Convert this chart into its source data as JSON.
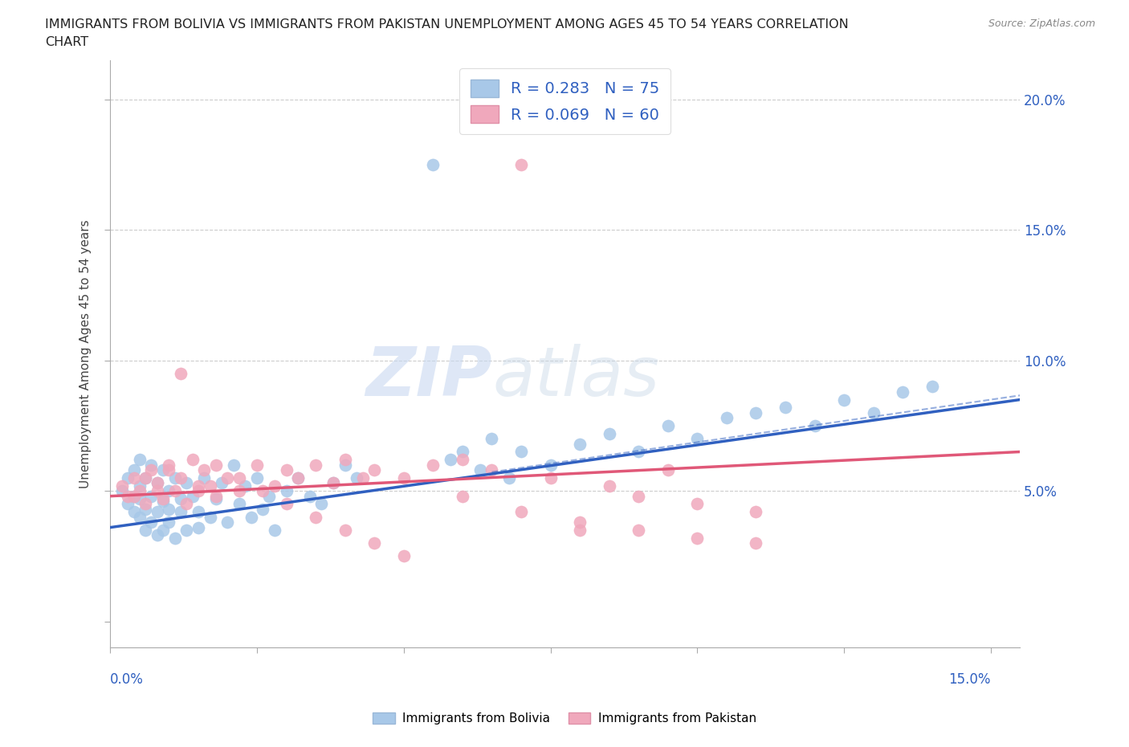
{
  "title_line1": "IMMIGRANTS FROM BOLIVIA VS IMMIGRANTS FROM PAKISTAN UNEMPLOYMENT AMONG AGES 45 TO 54 YEARS CORRELATION",
  "title_line2": "CHART",
  "source_text": "Source: ZipAtlas.com",
  "ylabel_label": "Unemployment Among Ages 45 to 54 years",
  "xlim": [
    0.0,
    0.155
  ],
  "ylim": [
    -0.01,
    0.215
  ],
  "legend_r1": "R = 0.283   N = 75",
  "legend_r2": "R = 0.069   N = 60",
  "color_bolivia": "#a8c8e8",
  "color_pakistan": "#f0a8bc",
  "color_bolivia_line": "#3060c0",
  "color_pakistan_line": "#e05878",
  "watermark_zip": "ZIP",
  "watermark_atlas": "atlas",
  "bolivia_x": [
    0.002,
    0.003,
    0.003,
    0.004,
    0.004,
    0.004,
    0.005,
    0.005,
    0.005,
    0.005,
    0.006,
    0.006,
    0.006,
    0.007,
    0.007,
    0.007,
    0.008,
    0.008,
    0.008,
    0.009,
    0.009,
    0.009,
    0.01,
    0.01,
    0.01,
    0.011,
    0.011,
    0.012,
    0.012,
    0.013,
    0.013,
    0.014,
    0.015,
    0.015,
    0.016,
    0.017,
    0.018,
    0.019,
    0.02,
    0.021,
    0.022,
    0.023,
    0.024,
    0.025,
    0.026,
    0.027,
    0.028,
    0.03,
    0.032,
    0.034,
    0.036,
    0.038,
    0.04,
    0.042,
    0.055,
    0.058,
    0.06,
    0.063,
    0.065,
    0.068,
    0.07,
    0.075,
    0.08,
    0.085,
    0.09,
    0.095,
    0.1,
    0.105,
    0.11,
    0.115,
    0.12,
    0.125,
    0.13,
    0.135,
    0.14
  ],
  "bolivia_y": [
    0.05,
    0.045,
    0.055,
    0.048,
    0.042,
    0.058,
    0.052,
    0.047,
    0.04,
    0.062,
    0.055,
    0.043,
    0.035,
    0.048,
    0.038,
    0.06,
    0.042,
    0.053,
    0.033,
    0.046,
    0.058,
    0.035,
    0.05,
    0.043,
    0.038,
    0.055,
    0.032,
    0.047,
    0.042,
    0.053,
    0.035,
    0.048,
    0.042,
    0.036,
    0.055,
    0.04,
    0.047,
    0.053,
    0.038,
    0.06,
    0.045,
    0.052,
    0.04,
    0.055,
    0.043,
    0.048,
    0.035,
    0.05,
    0.055,
    0.048,
    0.045,
    0.053,
    0.06,
    0.055,
    0.175,
    0.062,
    0.065,
    0.058,
    0.07,
    0.055,
    0.065,
    0.06,
    0.068,
    0.072,
    0.065,
    0.075,
    0.07,
    0.078,
    0.08,
    0.082,
    0.075,
    0.085,
    0.08,
    0.088,
    0.09
  ],
  "pakistan_x": [
    0.002,
    0.003,
    0.004,
    0.005,
    0.006,
    0.007,
    0.008,
    0.009,
    0.01,
    0.011,
    0.012,
    0.013,
    0.014,
    0.015,
    0.016,
    0.017,
    0.018,
    0.02,
    0.022,
    0.025,
    0.028,
    0.03,
    0.032,
    0.035,
    0.038,
    0.04,
    0.043,
    0.045,
    0.05,
    0.055,
    0.06,
    0.065,
    0.07,
    0.075,
    0.08,
    0.085,
    0.09,
    0.095,
    0.1,
    0.11,
    0.004,
    0.006,
    0.008,
    0.01,
    0.012,
    0.015,
    0.018,
    0.022,
    0.026,
    0.03,
    0.035,
    0.04,
    0.045,
    0.05,
    0.06,
    0.07,
    0.08,
    0.09,
    0.1,
    0.11
  ],
  "pakistan_y": [
    0.052,
    0.048,
    0.055,
    0.05,
    0.045,
    0.058,
    0.053,
    0.047,
    0.06,
    0.05,
    0.055,
    0.045,
    0.062,
    0.05,
    0.058,
    0.052,
    0.048,
    0.055,
    0.05,
    0.06,
    0.052,
    0.058,
    0.055,
    0.06,
    0.053,
    0.062,
    0.055,
    0.058,
    0.055,
    0.06,
    0.062,
    0.058,
    0.175,
    0.055,
    0.035,
    0.052,
    0.048,
    0.058,
    0.045,
    0.042,
    0.048,
    0.055,
    0.05,
    0.058,
    0.095,
    0.052,
    0.06,
    0.055,
    0.05,
    0.045,
    0.04,
    0.035,
    0.03,
    0.025,
    0.048,
    0.042,
    0.038,
    0.035,
    0.032,
    0.03
  ],
  "bol_line_x0": 0.0,
  "bol_line_y0": 0.036,
  "bol_line_x1": 0.15,
  "bol_line_y1": 0.085,
  "pak_line_x0": 0.0,
  "pak_line_y0": 0.048,
  "pak_line_x1": 0.15,
  "pak_line_y1": 0.065
}
